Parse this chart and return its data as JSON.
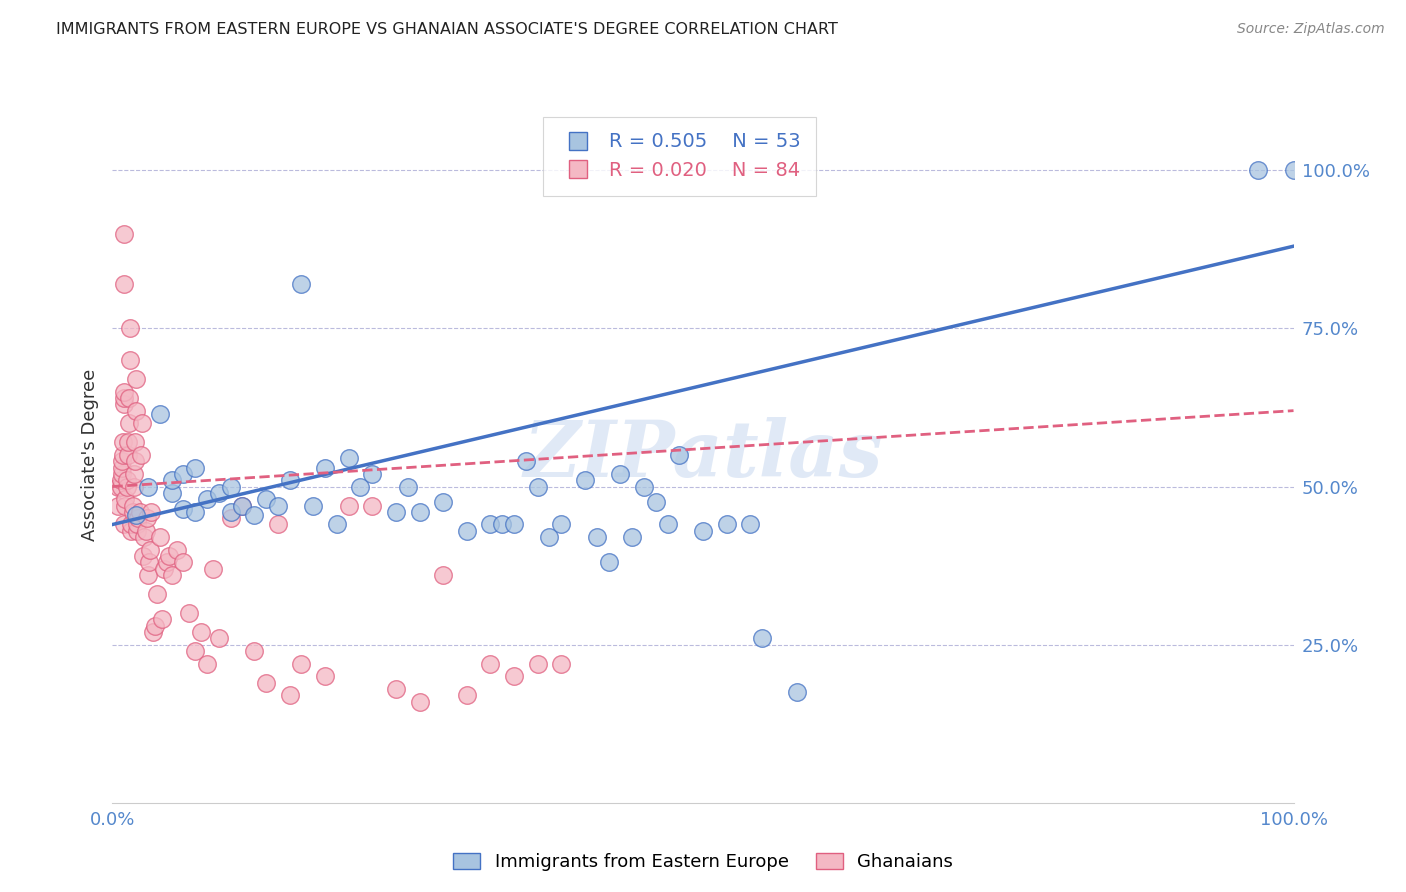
{
  "title": "IMMIGRANTS FROM EASTERN EUROPE VS GHANAIAN ASSOCIATE'S DEGREE CORRELATION CHART",
  "source": "Source: ZipAtlas.com",
  "ylabel": "Associate's Degree",
  "ytick_labels": [
    "25.0%",
    "50.0%",
    "75.0%",
    "100.0%"
  ],
  "ytick_values": [
    0.25,
    0.5,
    0.75,
    1.0
  ],
  "legend1_label": "Immigrants from Eastern Europe",
  "legend2_label": "Ghanaians",
  "legend1_R": "0.505",
  "legend1_N": "53",
  "legend2_R": "0.020",
  "legend2_N": "84",
  "blue_color": "#A8C4E0",
  "pink_color": "#F4B8C4",
  "blue_line_color": "#4472C4",
  "pink_line_color": "#E06080",
  "watermark": "ZIPatlas",
  "blue_scatter_x": [
    0.02,
    0.03,
    0.04,
    0.05,
    0.05,
    0.06,
    0.06,
    0.07,
    0.07,
    0.08,
    0.09,
    0.1,
    0.1,
    0.11,
    0.12,
    0.13,
    0.14,
    0.15,
    0.16,
    0.17,
    0.18,
    0.19,
    0.2,
    0.21,
    0.22,
    0.24,
    0.25,
    0.26,
    0.28,
    0.3,
    0.32,
    0.33,
    0.34,
    0.35,
    0.36,
    0.37,
    0.38,
    0.4,
    0.41,
    0.42,
    0.43,
    0.44,
    0.45,
    0.46,
    0.47,
    0.48,
    0.5,
    0.52,
    0.54,
    0.55,
    0.58,
    0.97,
    1.0
  ],
  "blue_scatter_y": [
    0.455,
    0.5,
    0.615,
    0.49,
    0.51,
    0.465,
    0.52,
    0.46,
    0.53,
    0.48,
    0.49,
    0.5,
    0.46,
    0.47,
    0.455,
    0.48,
    0.47,
    0.51,
    0.82,
    0.47,
    0.53,
    0.44,
    0.545,
    0.5,
    0.52,
    0.46,
    0.5,
    0.46,
    0.475,
    0.43,
    0.44,
    0.44,
    0.44,
    0.54,
    0.5,
    0.42,
    0.44,
    0.51,
    0.42,
    0.38,
    0.52,
    0.42,
    0.5,
    0.475,
    0.44,
    0.55,
    0.43,
    0.44,
    0.44,
    0.26,
    0.175,
    1.0,
    1.0
  ],
  "pink_scatter_x": [
    0.005,
    0.005,
    0.007,
    0.007,
    0.008,
    0.008,
    0.008,
    0.009,
    0.009,
    0.01,
    0.01,
    0.01,
    0.01,
    0.01,
    0.01,
    0.011,
    0.011,
    0.012,
    0.012,
    0.013,
    0.013,
    0.014,
    0.014,
    0.015,
    0.015,
    0.016,
    0.016,
    0.017,
    0.017,
    0.018,
    0.018,
    0.019,
    0.019,
    0.02,
    0.02,
    0.021,
    0.021,
    0.022,
    0.023,
    0.024,
    0.025,
    0.026,
    0.027,
    0.028,
    0.029,
    0.03,
    0.031,
    0.032,
    0.033,
    0.034,
    0.036,
    0.038,
    0.04,
    0.042,
    0.044,
    0.046,
    0.048,
    0.05,
    0.055,
    0.06,
    0.065,
    0.07,
    0.075,
    0.08,
    0.085,
    0.09,
    0.1,
    0.11,
    0.12,
    0.13,
    0.14,
    0.15,
    0.16,
    0.18,
    0.2,
    0.22,
    0.24,
    0.26,
    0.28,
    0.3,
    0.32,
    0.34,
    0.36,
    0.38
  ],
  "pink_scatter_y": [
    0.47,
    0.5,
    0.5,
    0.51,
    0.52,
    0.53,
    0.54,
    0.55,
    0.57,
    0.63,
    0.64,
    0.65,
    0.82,
    0.9,
    0.44,
    0.47,
    0.48,
    0.5,
    0.51,
    0.55,
    0.57,
    0.6,
    0.64,
    0.7,
    0.75,
    0.43,
    0.44,
    0.46,
    0.47,
    0.5,
    0.52,
    0.54,
    0.57,
    0.62,
    0.67,
    0.43,
    0.44,
    0.45,
    0.46,
    0.55,
    0.6,
    0.39,
    0.42,
    0.43,
    0.45,
    0.36,
    0.38,
    0.4,
    0.46,
    0.27,
    0.28,
    0.33,
    0.42,
    0.29,
    0.37,
    0.38,
    0.39,
    0.36,
    0.4,
    0.38,
    0.3,
    0.24,
    0.27,
    0.22,
    0.37,
    0.26,
    0.45,
    0.47,
    0.24,
    0.19,
    0.44,
    0.17,
    0.22,
    0.2,
    0.47,
    0.47,
    0.18,
    0.16,
    0.36,
    0.17,
    0.22,
    0.2,
    0.22,
    0.22
  ]
}
